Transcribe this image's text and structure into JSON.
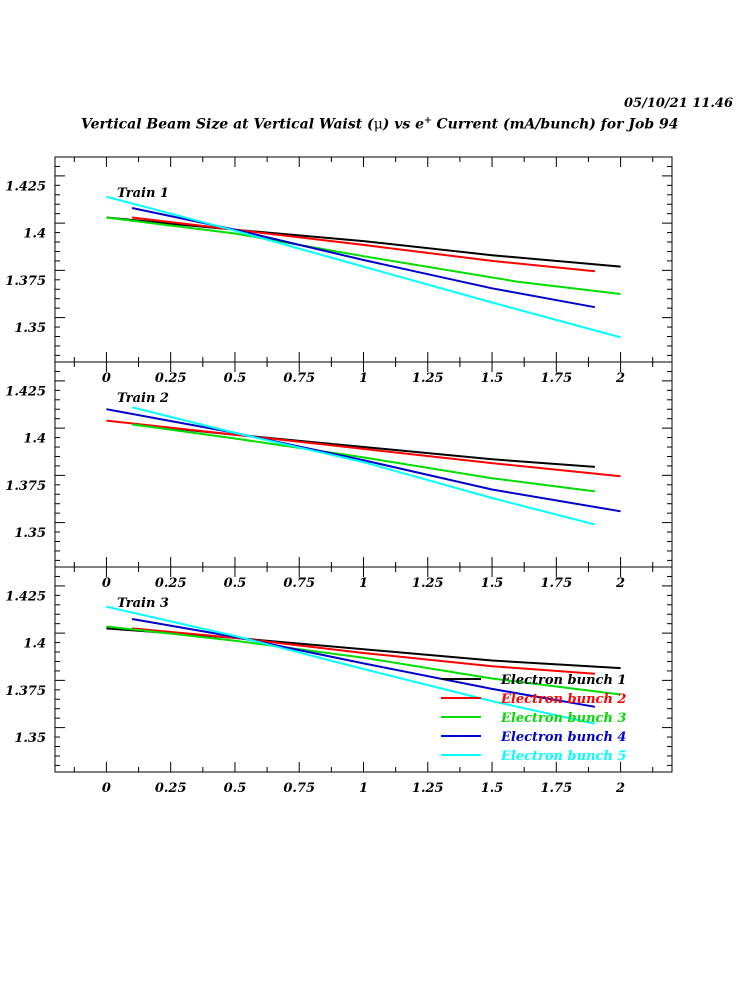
{
  "header": {
    "date": "05/10/21  11.46",
    "title_pre": "Vertical Beam Size at Vertical Waist (",
    "title_mu": "μ",
    "title_mid": ") vs e",
    "title_sup": "+",
    "title_post": " Current (mA/bunch) for Job 94"
  },
  "chart_data": [
    {
      "type": "line",
      "title": "Train 1",
      "xlim": [
        -0.2,
        2.2
      ],
      "ylim": [
        1.3315,
        1.44
      ],
      "xticks": [
        "0",
        "0.25",
        "0.5",
        "0.75",
        "1",
        "1.25",
        "1.5",
        "1.75",
        "2"
      ],
      "yticks": [
        "1.425",
        "1.4",
        "1.375",
        "1.35"
      ],
      "grid": false,
      "series": [
        {
          "name": "Electron bunch 1",
          "color": "#000000",
          "x": [
            0,
            0.5,
            1,
            1.5,
            2
          ],
          "y": [
            1.408,
            1.4015,
            1.3955,
            1.388,
            1.382
          ]
        },
        {
          "name": "Electron bunch 2",
          "color": "#ff0000",
          "x": [
            0.1,
            0.5,
            1,
            1.5,
            1.9
          ],
          "y": [
            1.408,
            1.4015,
            1.3935,
            1.385,
            1.3795
          ]
        },
        {
          "name": "Electron bunch 3",
          "color": "#00dd00",
          "x": [
            0,
            0.5,
            1,
            1.6,
            2
          ],
          "y": [
            1.408,
            1.3995,
            1.3875,
            1.374,
            1.3675
          ]
        },
        {
          "name": "Electron bunch 4",
          "color": "#0000cc",
          "x": [
            0.1,
            0.5,
            1,
            1.5,
            1.9
          ],
          "y": [
            1.413,
            1.4015,
            1.3855,
            1.3705,
            1.3605
          ]
        },
        {
          "name": "Electron bunch 5",
          "color": "#00ffff",
          "x": [
            0,
            0.5,
            1,
            1.5,
            2
          ],
          "y": [
            1.419,
            1.401,
            1.382,
            1.363,
            1.3445
          ]
        }
      ]
    },
    {
      "type": "line",
      "title": "Train 2",
      "xlim": [
        -0.2,
        2.2
      ],
      "ylim": [
        1.3315,
        1.44
      ],
      "xticks": [
        "0",
        "0.25",
        "0.5",
        "0.75",
        "1",
        "1.25",
        "1.5",
        "1.75",
        "2"
      ],
      "yticks": [
        "1.425",
        "1.4",
        "1.375",
        "1.35"
      ],
      "grid": false,
      "series": [
        {
          "name": "Electron bunch 1",
          "color": "#000000",
          "x": [
            0.1,
            0.5,
            1,
            1.5,
            1.9
          ],
          "y": [
            1.407,
            1.4015,
            1.395,
            1.3885,
            1.3845
          ]
        },
        {
          "name": "Electron bunch 2",
          "color": "#ff0000",
          "x": [
            0,
            0.5,
            1,
            1.5,
            2
          ],
          "y": [
            1.409,
            1.4015,
            1.394,
            1.3865,
            1.3795
          ]
        },
        {
          "name": "Electron bunch 3",
          "color": "#00dd00",
          "x": [
            0.1,
            0.5,
            1,
            1.5,
            1.9
          ],
          "y": [
            1.407,
            1.3995,
            1.3895,
            1.3785,
            1.3715
          ]
        },
        {
          "name": "Electron bunch 4",
          "color": "#0000cc",
          "x": [
            0,
            0.5,
            1,
            1.5,
            2
          ],
          "y": [
            1.415,
            1.4025,
            1.388,
            1.3725,
            1.361
          ]
        },
        {
          "name": "Electron bunch 5",
          "color": "#00ffff",
          "x": [
            0.1,
            0.5,
            1,
            1.5,
            1.9
          ],
          "y": [
            1.416,
            1.4025,
            1.387,
            1.368,
            1.354
          ]
        }
      ]
    },
    {
      "type": "line",
      "title": "Train 3",
      "xlim": [
        -0.2,
        2.2
      ],
      "ylim": [
        1.3315,
        1.44
      ],
      "xticks": [
        "0",
        "0.25",
        "0.5",
        "0.75",
        "1",
        "1.25",
        "1.5",
        "1.75",
        "2"
      ],
      "yticks": [
        "1.425",
        "1.4",
        "1.375",
        "1.35"
      ],
      "grid": false,
      "legend": "bottom-right",
      "series": [
        {
          "name": "Electron bunch 1",
          "color": "#000000",
          "x": [
            0,
            0.5,
            1,
            1.5,
            2
          ],
          "y": [
            1.4075,
            1.4025,
            1.3965,
            1.3905,
            1.3865
          ]
        },
        {
          "name": "Electron bunch 2",
          "color": "#ff0000",
          "x": [
            0.1,
            0.5,
            1,
            1.5,
            1.9
          ],
          "y": [
            1.4075,
            1.4025,
            1.3945,
            1.3875,
            1.3835
          ]
        },
        {
          "name": "Electron bunch 3",
          "color": "#00dd00",
          "x": [
            0,
            0.5,
            1,
            1.5,
            2
          ],
          "y": [
            1.4085,
            1.401,
            1.392,
            1.381,
            1.3725
          ]
        },
        {
          "name": "Electron bunch 4",
          "color": "#0000cc",
          "x": [
            0.1,
            0.5,
            1,
            1.5,
            1.9
          ],
          "y": [
            1.4125,
            1.403,
            1.389,
            1.3755,
            1.366
          ]
        },
        {
          "name": "Electron bunch 5",
          "color": "#00ffff",
          "x": [
            0,
            0.5,
            1,
            1.5,
            1.9
          ],
          "y": [
            1.419,
            1.4035,
            1.386,
            1.369,
            1.357
          ]
        }
      ]
    }
  ]
}
